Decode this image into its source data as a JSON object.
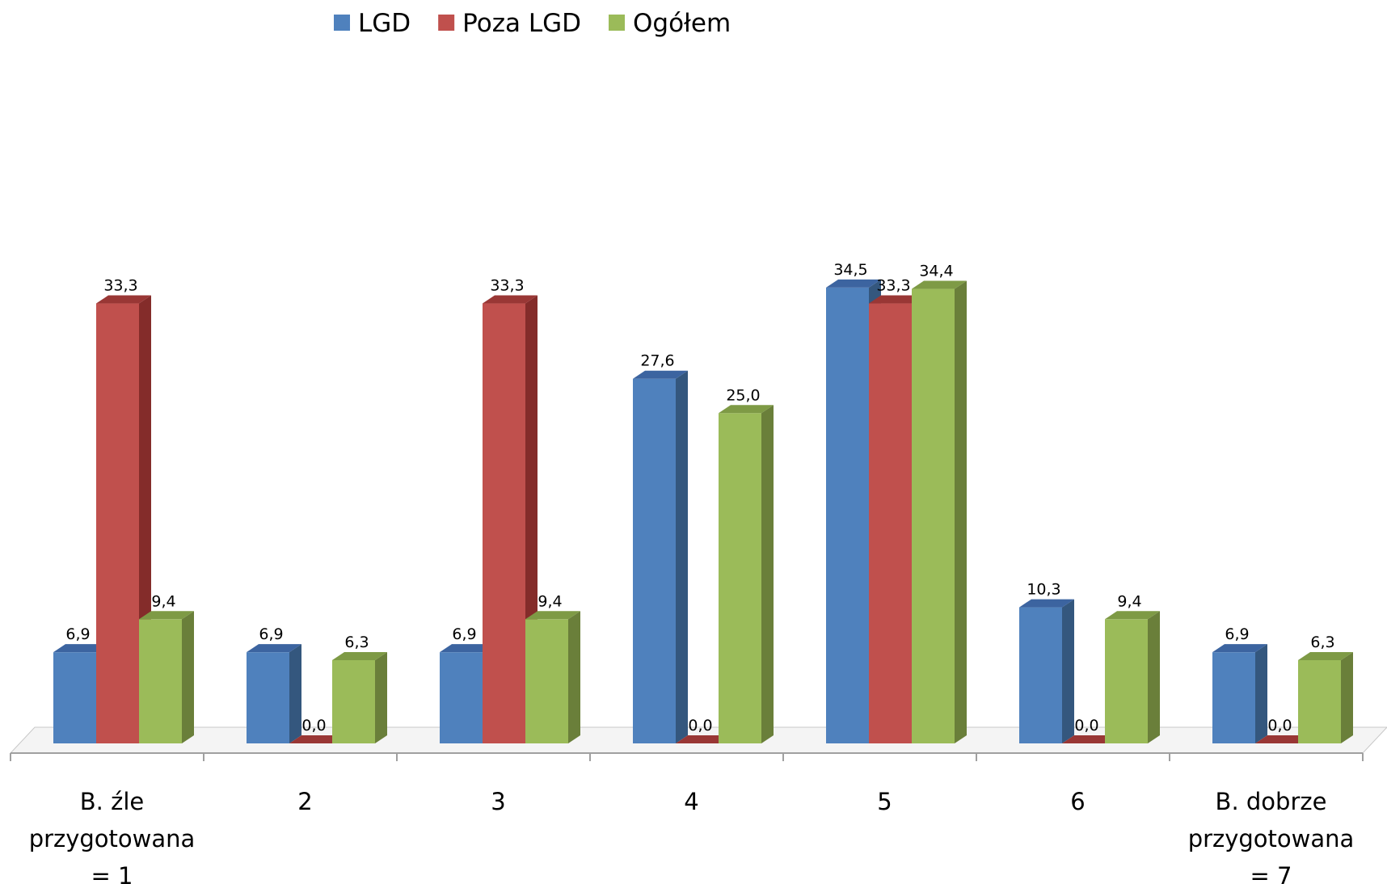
{
  "chart_data": {
    "type": "bar",
    "style": "3d-clustered-column",
    "title": "",
    "xlabel": "",
    "ylabel": "",
    "ylim": [
      0,
      36
    ],
    "grid": false,
    "legend_position": "top",
    "categories": [
      [
        "B. źle",
        "przygotowana",
        "= 1"
      ],
      [
        "2"
      ],
      [
        "3"
      ],
      [
        "4"
      ],
      [
        "5"
      ],
      [
        "6"
      ],
      [
        "B. dobrze",
        "przygotowana",
        "= 7"
      ]
    ],
    "series": [
      {
        "name": "LGD",
        "color": "#4F81BD",
        "side_color": "#34577E",
        "top_color": "#3C64A0",
        "values": [
          6.9,
          6.9,
          6.9,
          27.6,
          34.5,
          10.3,
          6.9
        ],
        "labels": [
          "6,9",
          "6,9",
          "6,9",
          "27,6",
          "34,5",
          "10,3",
          "6,9"
        ]
      },
      {
        "name": "Poza LGD",
        "color": "#C0504D",
        "side_color": "#842C2A",
        "top_color": "#993735",
        "values": [
          33.3,
          0.0,
          33.3,
          0.0,
          33.3,
          0.0,
          0.0
        ],
        "labels": [
          "33,3",
          "0,0",
          "33,3",
          "0,0",
          "33,3",
          "0,0",
          "0,0"
        ]
      },
      {
        "name": "Ogółem",
        "color": "#9BBB59",
        "side_color": "#6A7F3A",
        "top_color": "#7E9A45",
        "values": [
          9.4,
          6.3,
          9.4,
          25.0,
          34.4,
          9.4,
          6.3
        ],
        "labels": [
          "9,4",
          "6,3",
          "9,4",
          "25,0",
          "34,4",
          "9,4",
          "6,3"
        ]
      }
    ]
  }
}
